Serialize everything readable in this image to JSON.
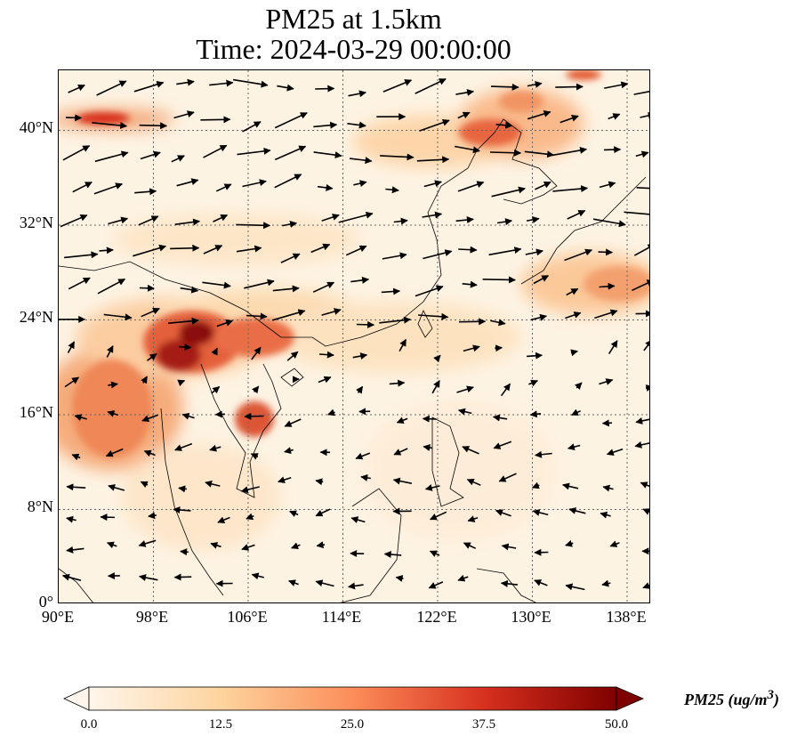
{
  "title": {
    "line1": "PM25 at 1.5km",
    "line2": "Time: 2024-03-29 00:00:00"
  },
  "map": {
    "lon_range": [
      90,
      140
    ],
    "lat_range": [
      0,
      45
    ],
    "lat_ticks": [
      "0°",
      "8°N",
      "16°N",
      "24°N",
      "32°N",
      "40°N"
    ],
    "lon_ticks": [
      "90°E",
      "98°E",
      "106°E",
      "114°E",
      "122°E",
      "130°E",
      "138°E"
    ],
    "gridlines": true
  },
  "colorbar": {
    "ticks": [
      "0.0",
      "12.5",
      "25.0",
      "37.5",
      "50.0"
    ],
    "range": [
      0,
      50
    ],
    "extend": "both",
    "colormap": [
      "#fff5eb",
      "#fdd49e",
      "#fc8d59",
      "#d7301f",
      "#7f0000"
    ],
    "label": "PM25 (ug/m",
    "label_sup": "3",
    "label_end": ")"
  }
}
